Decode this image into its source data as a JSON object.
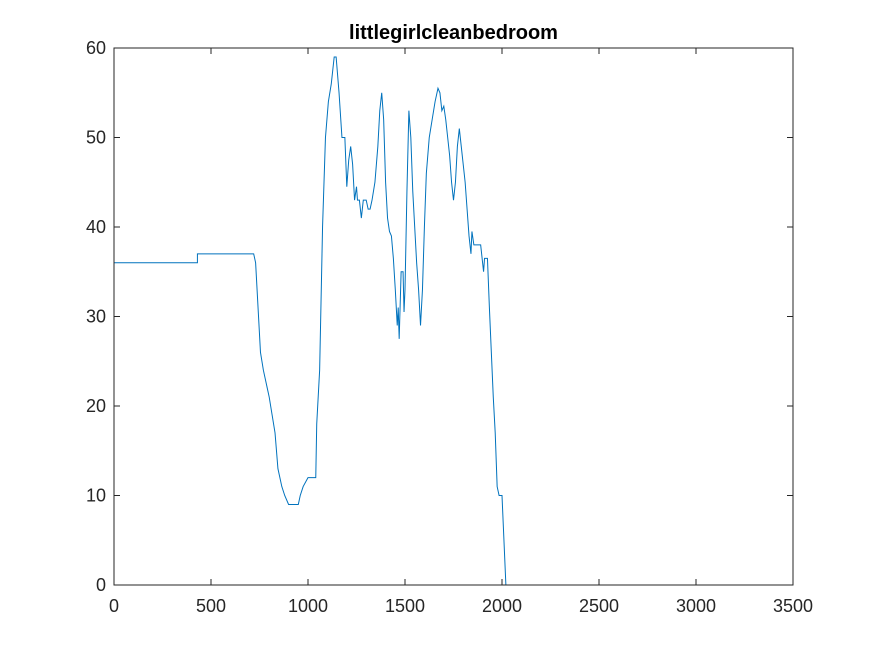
{
  "chart_data": {
    "type": "line",
    "title": "littlegirlcleanbedroom",
    "xlabel": "",
    "ylabel": "",
    "xlim": [
      0,
      3500
    ],
    "ylim": [
      0,
      60
    ],
    "x_ticks": [
      0,
      500,
      1000,
      1500,
      2000,
      2500,
      3000,
      3500
    ],
    "y_ticks": [
      0,
      10,
      20,
      30,
      40,
      50,
      60
    ],
    "grid": false,
    "box": true,
    "series": [
      {
        "color": "#0072bd",
        "points": [
          [
            0,
            36
          ],
          [
            430,
            36
          ],
          [
            430,
            37
          ],
          [
            720,
            37
          ],
          [
            730,
            36
          ],
          [
            745,
            30
          ],
          [
            755,
            26
          ],
          [
            770,
            24
          ],
          [
            790,
            22
          ],
          [
            800,
            21
          ],
          [
            815,
            19
          ],
          [
            830,
            17
          ],
          [
            845,
            13
          ],
          [
            865,
            11
          ],
          [
            880,
            10
          ],
          [
            900,
            9
          ],
          [
            950,
            9
          ],
          [
            960,
            10
          ],
          [
            975,
            11
          ],
          [
            1000,
            12
          ],
          [
            1040,
            12
          ],
          [
            1045,
            18
          ],
          [
            1060,
            24
          ],
          [
            1075,
            40
          ],
          [
            1090,
            50
          ],
          [
            1105,
            54
          ],
          [
            1120,
            56
          ],
          [
            1135,
            59
          ],
          [
            1145,
            59
          ],
          [
            1160,
            55
          ],
          [
            1175,
            50
          ],
          [
            1190,
            50
          ],
          [
            1200,
            44.5
          ],
          [
            1210,
            47.5
          ],
          [
            1220,
            49
          ],
          [
            1230,
            47
          ],
          [
            1240,
            43
          ],
          [
            1250,
            44.5
          ],
          [
            1255,
            43
          ],
          [
            1265,
            43
          ],
          [
            1275,
            41
          ],
          [
            1285,
            43
          ],
          [
            1300,
            43
          ],
          [
            1310,
            42
          ],
          [
            1320,
            42
          ],
          [
            1330,
            43
          ],
          [
            1345,
            45
          ],
          [
            1360,
            49
          ],
          [
            1370,
            53
          ],
          [
            1380,
            55
          ],
          [
            1390,
            52
          ],
          [
            1400,
            45
          ],
          [
            1410,
            41
          ],
          [
            1420,
            39.5
          ],
          [
            1430,
            39
          ],
          [
            1440,
            36.5
          ],
          [
            1450,
            33
          ],
          [
            1460,
            29
          ],
          [
            1465,
            31
          ],
          [
            1470,
            27.5
          ],
          [
            1480,
            35
          ],
          [
            1490,
            35
          ],
          [
            1495,
            30.5
          ],
          [
            1500,
            33
          ],
          [
            1510,
            44
          ],
          [
            1520,
            53
          ],
          [
            1530,
            50
          ],
          [
            1540,
            44
          ],
          [
            1550,
            40
          ],
          [
            1560,
            36
          ],
          [
            1570,
            33
          ],
          [
            1580,
            29
          ],
          [
            1590,
            33
          ],
          [
            1600,
            40
          ],
          [
            1610,
            46
          ],
          [
            1625,
            50
          ],
          [
            1640,
            52
          ],
          [
            1655,
            54
          ],
          [
            1670,
            55.5
          ],
          [
            1680,
            55
          ],
          [
            1690,
            53
          ],
          [
            1700,
            53.5
          ],
          [
            1710,
            52
          ],
          [
            1720,
            50
          ],
          [
            1730,
            48
          ],
          [
            1740,
            45
          ],
          [
            1750,
            43
          ],
          [
            1760,
            45
          ],
          [
            1770,
            49
          ],
          [
            1780,
            51
          ],
          [
            1790,
            49
          ],
          [
            1800,
            47
          ],
          [
            1810,
            45
          ],
          [
            1820,
            42
          ],
          [
            1830,
            39
          ],
          [
            1840,
            37
          ],
          [
            1845,
            39.5
          ],
          [
            1855,
            38
          ],
          [
            1870,
            38
          ],
          [
            1890,
            38
          ],
          [
            1900,
            36
          ],
          [
            1905,
            35
          ],
          [
            1910,
            36.5
          ],
          [
            1925,
            36.5
          ],
          [
            1935,
            31
          ],
          [
            1945,
            26
          ],
          [
            1955,
            21
          ],
          [
            1965,
            17
          ],
          [
            1975,
            11
          ],
          [
            1985,
            10
          ],
          [
            2000,
            10
          ],
          [
            2010,
            5
          ],
          [
            2020,
            0
          ],
          [
            2500,
            0
          ],
          [
            3065,
            0
          ]
        ]
      }
    ]
  }
}
